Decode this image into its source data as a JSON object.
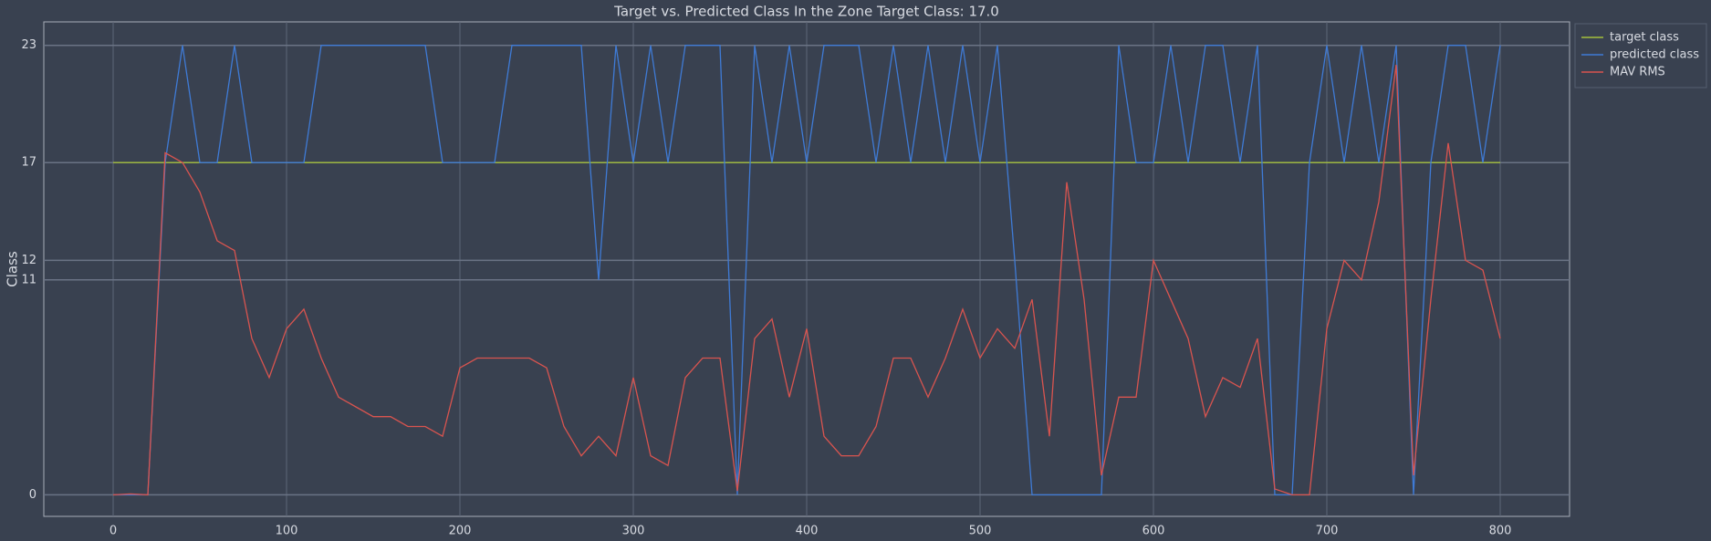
{
  "chart_data": {
    "type": "line",
    "title": "Target vs. Predicted Class In the Zone Target Class: 17.0",
    "y_label": "Class",
    "x": [
      0,
      10,
      20,
      30,
      40,
      50,
      60,
      70,
      80,
      90,
      100,
      110,
      120,
      130,
      140,
      150,
      160,
      170,
      180,
      190,
      200,
      210,
      220,
      230,
      240,
      250,
      260,
      270,
      280,
      290,
      300,
      310,
      320,
      330,
      340,
      350,
      360,
      370,
      380,
      390,
      400,
      410,
      420,
      430,
      440,
      450,
      460,
      470,
      480,
      490,
      500,
      510,
      520,
      530,
      540,
      550,
      560,
      570,
      580,
      590,
      600,
      610,
      620,
      630,
      640,
      650,
      660,
      670,
      680,
      690,
      700,
      710,
      720,
      730,
      740,
      750,
      760,
      770,
      780,
      790,
      800
    ],
    "series": [
      {
        "name": "target class",
        "color": "#a4c03c",
        "values": [
          17,
          17,
          17,
          17,
          17,
          17,
          17,
          17,
          17,
          17,
          17,
          17,
          17,
          17,
          17,
          17,
          17,
          17,
          17,
          17,
          17,
          17,
          17,
          17,
          17,
          17,
          17,
          17,
          17,
          17,
          17,
          17,
          17,
          17,
          17,
          17,
          17,
          17,
          17,
          17,
          17,
          17,
          17,
          17,
          17,
          17,
          17,
          17,
          17,
          17,
          17,
          17,
          17,
          17,
          17,
          17,
          17,
          17,
          17,
          17,
          17,
          17,
          17,
          17,
          17,
          17,
          17,
          17,
          17,
          17,
          17,
          17,
          17,
          17,
          17,
          17,
          17,
          17,
          17,
          17,
          17
        ]
      },
      {
        "name": "predicted class",
        "color": "#3f7bd6",
        "values": [
          0,
          0,
          0,
          17,
          23,
          17,
          17,
          23,
          17,
          17,
          17,
          17,
          23,
          23,
          23,
          23,
          23,
          23,
          23,
          17,
          17,
          17,
          17,
          23,
          23,
          23,
          23,
          23,
          11,
          23,
          17,
          23,
          17,
          23,
          23,
          23,
          0,
          23,
          17,
          23,
          17,
          23,
          23,
          23,
          17,
          23,
          17,
          23,
          17,
          23,
          17,
          23,
          12,
          0,
          0,
          0,
          0,
          0,
          23,
          17,
          17,
          23,
          17,
          23,
          23,
          17,
          23,
          0,
          0,
          17,
          23,
          17,
          23,
          17,
          23,
          0,
          17,
          23,
          23,
          17,
          23
        ]
      },
      {
        "name": "MAV RMS",
        "color": "#d9544f",
        "values": [
          0,
          0.05,
          0,
          17.5,
          17,
          15.5,
          13,
          12.5,
          8,
          6,
          8.5,
          9.5,
          7,
          5,
          4.5,
          4,
          4,
          3.5,
          3.5,
          3,
          6.5,
          7,
          7,
          7,
          7,
          6.5,
          3.5,
          2,
          3,
          2,
          6,
          2,
          1.5,
          6,
          7,
          7,
          0.2,
          8,
          9,
          5,
          8.5,
          3,
          2,
          2,
          3.5,
          7,
          7,
          5,
          7,
          9.5,
          7,
          8.5,
          7.5,
          10,
          3,
          16,
          10,
          1,
          5,
          5,
          12,
          10,
          8,
          4,
          6,
          5.5,
          8,
          0.3,
          0,
          0,
          8.5,
          12,
          11,
          15,
          22,
          1,
          10,
          18,
          12,
          11.5,
          8
        ]
      }
    ],
    "xlim": [
      -40,
      840
    ],
    "ylim": [
      -1.1,
      24.2
    ],
    "xticks": [
      0,
      100,
      200,
      300,
      400,
      500,
      600,
      700,
      800
    ],
    "yticks": [
      0,
      11,
      12,
      17,
      23
    ],
    "grid": true,
    "legend": "outside upper right"
  }
}
